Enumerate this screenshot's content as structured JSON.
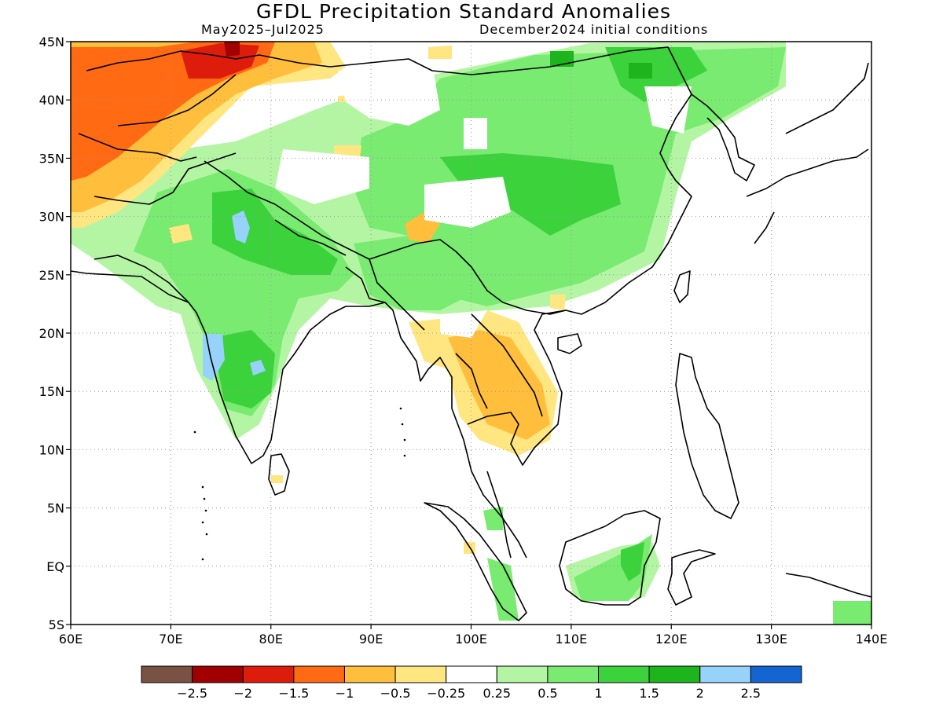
{
  "header": {
    "title": "GFDL Precipitation Standard Anomalies",
    "period": "May2025–Jul2025",
    "init": "December2024 initial conditions"
  },
  "map": {
    "lon_range": [
      60,
      140
    ],
    "lat_range": [
      -5,
      45
    ],
    "lon_ticks": [
      "60E",
      "70E",
      "80E",
      "90E",
      "100E",
      "110E",
      "120E",
      "130E",
      "140E"
    ],
    "lat_ticks": [
      "45N",
      "40N",
      "35N",
      "30N",
      "25N",
      "20N",
      "15N",
      "10N",
      "5N",
      "EQ",
      "5S"
    ],
    "grid": true,
    "colors": {
      "c_m3": "#7a5245",
      "c_m25": "#a00000",
      "c_m2": "#dd1c0c",
      "c_m15": "#ff6a12",
      "c_m1": "#ffbe3c",
      "c_m05": "#ffe680",
      "c_0": "#ffffff",
      "c_p05": "#b4f5a4",
      "c_p1": "#78eb70",
      "c_p15": "#3cd23c",
      "c_p2": "#1eb41e",
      "c_p25": "#96d2fa",
      "c_p3": "#1464d2"
    }
  },
  "legend": {
    "colors": [
      "#7a5245",
      "#a00000",
      "#dd1c0c",
      "#ff6a12",
      "#ffbe3c",
      "#ffe680",
      "#ffffff",
      "#b4f5a4",
      "#78eb70",
      "#3cd23c",
      "#1eb41e",
      "#96d2fa",
      "#1464d2"
    ],
    "labels": [
      "−2.5",
      "−2",
      "−1.5",
      "−1",
      "−0.5",
      "−0.25",
      "0.25",
      "0.5",
      "1",
      "1.5",
      "2",
      "2.5"
    ]
  }
}
